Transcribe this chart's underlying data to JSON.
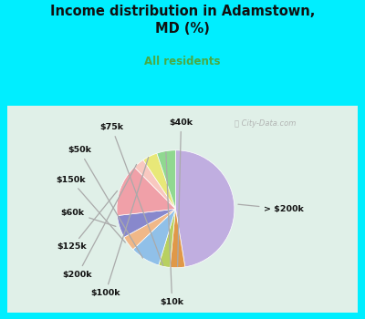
{
  "title": "Income distribution in Adamstown,\nMD (%)",
  "subtitle": "All residents",
  "title_color": "#111111",
  "subtitle_color": "#4aaa44",
  "bg_outer": "#00eeff",
  "bg_inner_top": "#e8f8f8",
  "bg_inner_bottom": "#d8eedd",
  "watermark": "ⓘ City-Data.com",
  "labels": [
    "> $200k",
    "$40k",
    "$75k",
    "$50k",
    "$150k",
    "$60k",
    "$125k",
    "$200k",
    "$100k",
    "$10k"
  ],
  "values": [
    46,
    4,
    3,
    8,
    4,
    6,
    14,
    3,
    4,
    5
  ],
  "colors": [
    "#c0aee0",
    "#e09848",
    "#b8d060",
    "#90c0e8",
    "#f0b888",
    "#8888cc",
    "#f0a0a8",
    "#f8c8c0",
    "#e8e878",
    "#90d890"
  ],
  "startangle": 90,
  "counterclock": false
}
